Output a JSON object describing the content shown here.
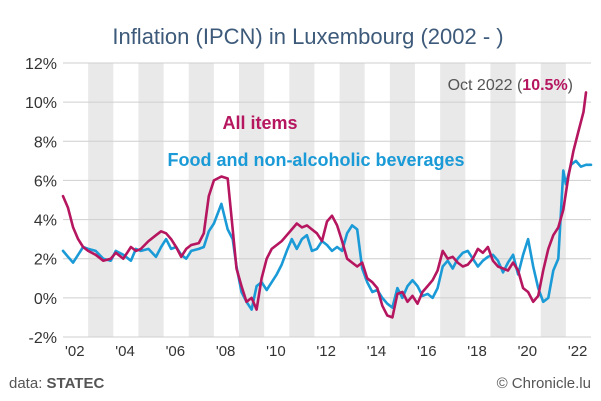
{
  "chart_data": {
    "type": "line",
    "title": "Inflation (IPCN) in Luxembourg (2002 - )",
    "y_unit": "%",
    "ylim": [
      -2,
      12
    ],
    "y_ticks": [
      "12%",
      "10%",
      "8%",
      "6%",
      "4%",
      "2%",
      "0%",
      "-2%"
    ],
    "x_range": [
      2002.0,
      2023.0
    ],
    "x_ticks": [
      "'02",
      "'04",
      "'06",
      "'08",
      "'10",
      "'12",
      "'14",
      "'16",
      "'18",
      "'20",
      "'22"
    ],
    "alternating_year_bands": true,
    "annotation": {
      "text_prefix": "Oct 2022 (",
      "value": "10.5%",
      "text_suffix": ")",
      "date": "2022-10",
      "y": 10.5
    },
    "series": [
      {
        "name": "All items",
        "color": "#b5165f",
        "points": [
          [
            2002.0,
            5.2
          ],
          [
            2002.2,
            4.6
          ],
          [
            2002.4,
            3.6
          ],
          [
            2002.6,
            3.0
          ],
          [
            2002.8,
            2.6
          ],
          [
            2003.0,
            2.4
          ],
          [
            2003.3,
            2.2
          ],
          [
            2003.6,
            1.9
          ],
          [
            2003.9,
            2.0
          ],
          [
            2004.1,
            2.3
          ],
          [
            2004.4,
            2.0
          ],
          [
            2004.7,
            2.6
          ],
          [
            2004.9,
            2.4
          ],
          [
            2005.1,
            2.5
          ],
          [
            2005.4,
            2.9
          ],
          [
            2005.7,
            3.2
          ],
          [
            2005.9,
            3.4
          ],
          [
            2006.1,
            3.3
          ],
          [
            2006.3,
            3.0
          ],
          [
            2006.5,
            2.6
          ],
          [
            2006.7,
            2.1
          ],
          [
            2006.9,
            2.5
          ],
          [
            2007.1,
            2.7
          ],
          [
            2007.4,
            2.8
          ],
          [
            2007.6,
            3.3
          ],
          [
            2007.8,
            5.2
          ],
          [
            2008.0,
            6.0
          ],
          [
            2008.3,
            6.2
          ],
          [
            2008.55,
            6.1
          ],
          [
            2008.75,
            3.5
          ],
          [
            2008.9,
            1.5
          ],
          [
            2009.1,
            0.6
          ],
          [
            2009.3,
            -0.2
          ],
          [
            2009.5,
            0.0
          ],
          [
            2009.7,
            -0.6
          ],
          [
            2009.9,
            1.0
          ],
          [
            2010.1,
            2.0
          ],
          [
            2010.3,
            2.5
          ],
          [
            2010.5,
            2.7
          ],
          [
            2010.7,
            2.9
          ],
          [
            2010.9,
            3.2
          ],
          [
            2011.1,
            3.5
          ],
          [
            2011.3,
            3.8
          ],
          [
            2011.5,
            3.6
          ],
          [
            2011.7,
            3.7
          ],
          [
            2011.9,
            3.5
          ],
          [
            2012.1,
            3.3
          ],
          [
            2012.3,
            2.9
          ],
          [
            2012.5,
            3.9
          ],
          [
            2012.7,
            4.2
          ],
          [
            2012.9,
            3.7
          ],
          [
            2013.1,
            2.9
          ],
          [
            2013.3,
            2.0
          ],
          [
            2013.5,
            1.8
          ],
          [
            2013.7,
            1.6
          ],
          [
            2013.9,
            1.8
          ],
          [
            2014.1,
            1.0
          ],
          [
            2014.3,
            0.8
          ],
          [
            2014.5,
            0.5
          ],
          [
            2014.7,
            -0.4
          ],
          [
            2014.9,
            -0.9
          ],
          [
            2015.1,
            -1.0
          ],
          [
            2015.3,
            0.2
          ],
          [
            2015.5,
            0.3
          ],
          [
            2015.7,
            -0.2
          ],
          [
            2015.9,
            0.1
          ],
          [
            2016.1,
            -0.3
          ],
          [
            2016.3,
            0.3
          ],
          [
            2016.5,
            0.6
          ],
          [
            2016.7,
            0.9
          ],
          [
            2016.9,
            1.4
          ],
          [
            2017.1,
            2.4
          ],
          [
            2017.3,
            2.0
          ],
          [
            2017.5,
            2.1
          ],
          [
            2017.7,
            1.8
          ],
          [
            2017.9,
            1.6
          ],
          [
            2018.1,
            1.7
          ],
          [
            2018.3,
            2.0
          ],
          [
            2018.5,
            2.5
          ],
          [
            2018.7,
            2.3
          ],
          [
            2018.9,
            2.6
          ],
          [
            2019.1,
            1.9
          ],
          [
            2019.3,
            1.6
          ],
          [
            2019.5,
            1.5
          ],
          [
            2019.7,
            1.4
          ],
          [
            2019.9,
            1.8
          ],
          [
            2020.1,
            1.4
          ],
          [
            2020.3,
            0.5
          ],
          [
            2020.5,
            0.3
          ],
          [
            2020.7,
            -0.2
          ],
          [
            2020.9,
            0.1
          ],
          [
            2021.1,
            1.4
          ],
          [
            2021.3,
            2.5
          ],
          [
            2021.5,
            3.2
          ],
          [
            2021.7,
            3.6
          ],
          [
            2021.9,
            4.5
          ],
          [
            2022.1,
            6.2
          ],
          [
            2022.3,
            7.5
          ],
          [
            2022.5,
            8.5
          ],
          [
            2022.7,
            9.5
          ],
          [
            2022.8,
            10.5
          ]
        ]
      },
      {
        "name": "Food and non-alcoholic beverages",
        "color": "#1a9ad6",
        "points": [
          [
            2002.0,
            2.4
          ],
          [
            2002.2,
            2.1
          ],
          [
            2002.4,
            1.8
          ],
          [
            2002.6,
            2.2
          ],
          [
            2002.8,
            2.6
          ],
          [
            2003.0,
            2.5
          ],
          [
            2003.3,
            2.4
          ],
          [
            2003.6,
            2.0
          ],
          [
            2003.9,
            1.9
          ],
          [
            2004.1,
            2.4
          ],
          [
            2004.4,
            2.2
          ],
          [
            2004.7,
            1.9
          ],
          [
            2004.9,
            2.5
          ],
          [
            2005.1,
            2.4
          ],
          [
            2005.4,
            2.5
          ],
          [
            2005.7,
            2.1
          ],
          [
            2005.9,
            2.6
          ],
          [
            2006.1,
            3.0
          ],
          [
            2006.3,
            2.5
          ],
          [
            2006.5,
            2.6
          ],
          [
            2006.7,
            2.2
          ],
          [
            2006.9,
            2.0
          ],
          [
            2007.1,
            2.4
          ],
          [
            2007.4,
            2.5
          ],
          [
            2007.6,
            2.6
          ],
          [
            2007.8,
            3.4
          ],
          [
            2008.0,
            3.8
          ],
          [
            2008.3,
            4.8
          ],
          [
            2008.55,
            3.5
          ],
          [
            2008.75,
            3.0
          ],
          [
            2008.9,
            1.6
          ],
          [
            2009.1,
            0.3
          ],
          [
            2009.3,
            -0.2
          ],
          [
            2009.5,
            -0.6
          ],
          [
            2009.7,
            0.6
          ],
          [
            2009.9,
            0.8
          ],
          [
            2010.1,
            0.4
          ],
          [
            2010.3,
            0.8
          ],
          [
            2010.5,
            1.2
          ],
          [
            2010.7,
            1.7
          ],
          [
            2010.9,
            2.4
          ],
          [
            2011.1,
            3.0
          ],
          [
            2011.3,
            2.5
          ],
          [
            2011.5,
            3.0
          ],
          [
            2011.7,
            3.2
          ],
          [
            2011.9,
            2.4
          ],
          [
            2012.1,
            2.5
          ],
          [
            2012.3,
            2.9
          ],
          [
            2012.5,
            2.7
          ],
          [
            2012.7,
            2.4
          ],
          [
            2012.9,
            2.6
          ],
          [
            2013.1,
            2.4
          ],
          [
            2013.3,
            3.3
          ],
          [
            2013.5,
            3.7
          ],
          [
            2013.7,
            3.5
          ],
          [
            2013.9,
            1.5
          ],
          [
            2014.1,
            0.8
          ],
          [
            2014.3,
            0.3
          ],
          [
            2014.5,
            0.4
          ],
          [
            2014.7,
            0.0
          ],
          [
            2014.9,
            -0.3
          ],
          [
            2015.1,
            -0.5
          ],
          [
            2015.3,
            0.5
          ],
          [
            2015.5,
            0.0
          ],
          [
            2015.7,
            0.6
          ],
          [
            2015.9,
            0.9
          ],
          [
            2016.1,
            0.6
          ],
          [
            2016.3,
            0.1
          ],
          [
            2016.5,
            0.2
          ],
          [
            2016.7,
            0.0
          ],
          [
            2016.9,
            0.5
          ],
          [
            2017.1,
            1.6
          ],
          [
            2017.3,
            1.9
          ],
          [
            2017.5,
            1.5
          ],
          [
            2017.7,
            2.0
          ],
          [
            2017.9,
            2.3
          ],
          [
            2018.1,
            2.4
          ],
          [
            2018.3,
            2.0
          ],
          [
            2018.5,
            1.6
          ],
          [
            2018.7,
            1.9
          ],
          [
            2018.9,
            2.1
          ],
          [
            2019.1,
            2.2
          ],
          [
            2019.3,
            1.9
          ],
          [
            2019.5,
            1.3
          ],
          [
            2019.7,
            1.8
          ],
          [
            2019.9,
            2.2
          ],
          [
            2020.1,
            1.2
          ],
          [
            2020.3,
            2.2
          ],
          [
            2020.5,
            3.0
          ],
          [
            2020.7,
            1.6
          ],
          [
            2020.9,
            0.5
          ],
          [
            2021.1,
            -0.2
          ],
          [
            2021.3,
            0.0
          ],
          [
            2021.5,
            1.4
          ],
          [
            2021.7,
            2.0
          ],
          [
            2021.9,
            6.5
          ],
          [
            2022.0,
            5.8
          ],
          [
            2022.2,
            6.8
          ],
          [
            2022.4,
            7.0
          ],
          [
            2022.6,
            6.7
          ],
          [
            2022.8,
            6.8
          ],
          [
            2023.0,
            6.8
          ]
        ]
      }
    ]
  },
  "footer": {
    "source_prefix": "data: ",
    "source_name": "STATEC",
    "copyright": "© Chronicle.lu"
  }
}
